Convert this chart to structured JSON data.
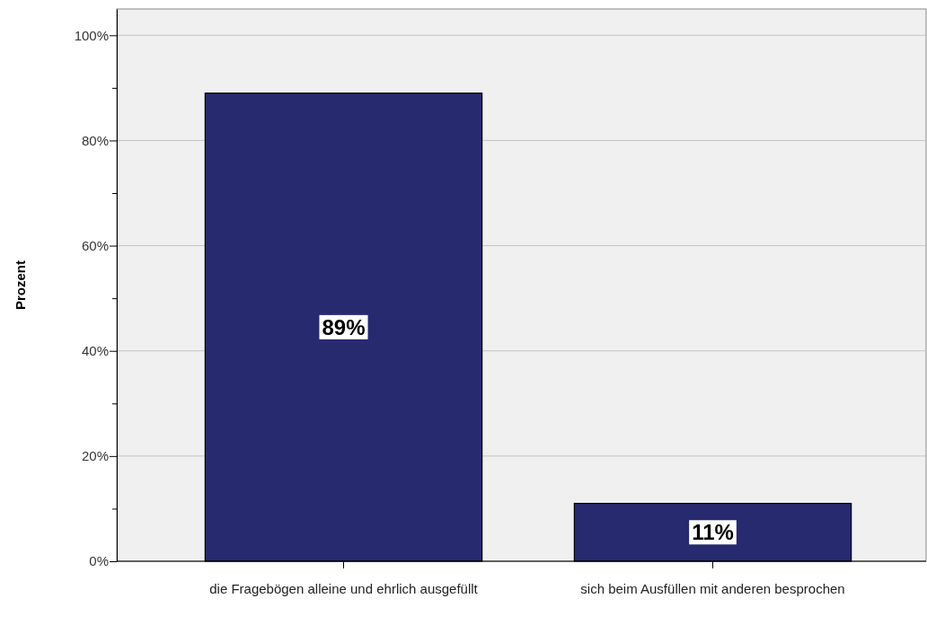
{
  "chart_data": {
    "type": "bar",
    "ylabel": "Prozent",
    "categories": [
      "die Fragebögen alleine und ehrlich ausgefüllt",
      "sich beim Ausfüllen mit anderen besprochen"
    ],
    "values": [
      89,
      11
    ],
    "color": "#282a70",
    "value_labels": [
      "89%",
      "11%"
    ],
    "ylim": [
      0,
      105
    ],
    "yticks": [
      {
        "value": 0,
        "label": "0%"
      },
      {
        "value": 10,
        "label": null
      },
      {
        "value": 20,
        "label": "20%"
      },
      {
        "value": 30,
        "label": null
      },
      {
        "value": 40,
        "label": "40%"
      },
      {
        "value": 50,
        "label": null
      },
      {
        "value": 60,
        "label": "60%"
      },
      {
        "value": 70,
        "label": null
      },
      {
        "value": 80,
        "label": "80%"
      },
      {
        "value": 90,
        "label": null
      },
      {
        "value": 100,
        "label": "100%"
      }
    ],
    "grid": "y"
  }
}
